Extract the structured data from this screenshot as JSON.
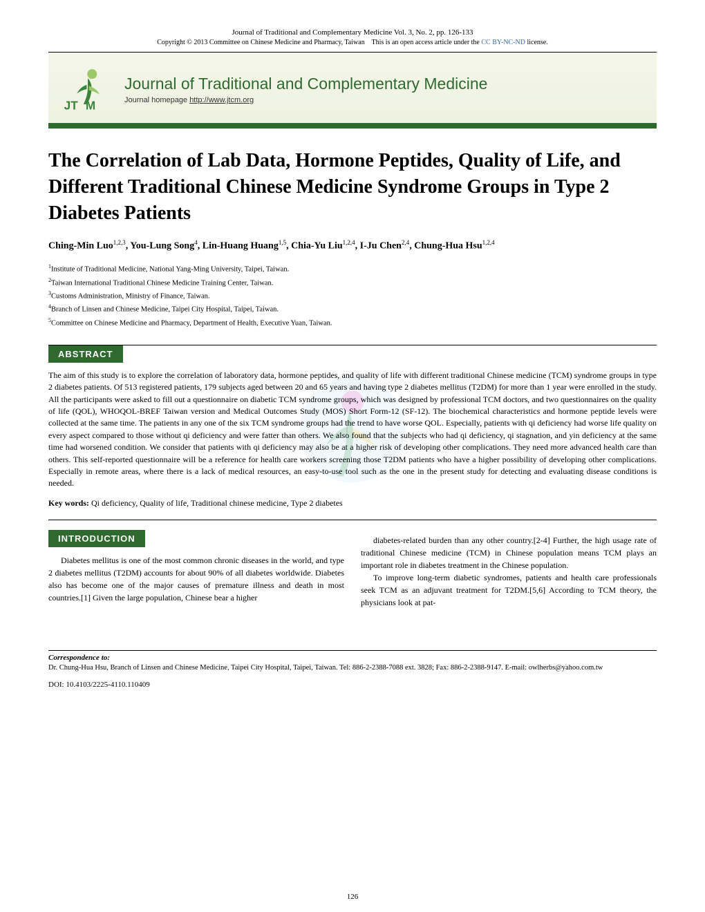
{
  "header": {
    "line1": "Journal of Traditional and Complementary Medicine Vol. 3, No. 2, pp. 126-133",
    "line2_prefix": "Copyright © 2013 Committee on Chinese Medicine and Pharmacy, Taiwan",
    "line2_mid": "This is an open access article under the ",
    "license_text": "CC BY-NC-ND",
    "line2_suffix": " license."
  },
  "banner": {
    "title": "Journal of Traditional and Complementary Medicine",
    "subtitle_prefix": "Journal homepage ",
    "subtitle_link": "http://www.jtcm.org",
    "logo_letters": "JTCM",
    "logo_fill": "#3a833a",
    "logo_accent": "#9cc86a"
  },
  "article": {
    "title": "The Correlation of Lab Data, Hormone Peptides, Quality of Life, and Different Traditional Chinese Medicine Syndrome Groups in Type 2 Diabetes Patients",
    "authors_html": "Ching-Min Luo<sup>1,2,3</sup>, You-Lung Song<sup>4</sup>, Lin-Huang Huang<sup>1,5</sup>, Chia-Yu Liu<sup>1,2,4</sup>, I-Ju Chen<sup>2,4</sup>, Chung-Hua Hsu<sup>1,2,4</sup>",
    "affiliations": [
      "Institute of Traditional Medicine, National Yang-Ming University, Taipei, Taiwan.",
      "Taiwan International Traditional Chinese Medicine Training Center, Taiwan.",
      "Customs Administration, Ministry of Finance, Taiwan.",
      "Branch of Linsen and Chinese Medicine, Taipei City Hospital, Taipei, Taiwan.",
      "Committee on Chinese Medicine and Pharmacy, Department of Health, Executive Yuan, Taiwan."
    ]
  },
  "sections": {
    "abstract_label": "ABSTRACT",
    "introduction_label": "INTRODUCTION"
  },
  "abstract": {
    "text": "The aim of this study is to explore the correlation of laboratory data, hormone peptides, and quality of life with different traditional Chinese medicine (TCM) syndrome groups in type 2 diabetes patients. Of 513 registered patients, 179 subjects aged between 20 and 65 years and having type 2 diabetes mellitus (T2DM) for more than 1 year were enrolled in the study. All the participants were asked to fill out a questionnaire on diabetic TCM syndrome groups, which was designed by professional TCM doctors, and two questionnaires on the quality of life (QOL), WHOQOL-BREF Taiwan version and Medical Outcomes Study (MOS) Short Form-12 (SF-12). The biochemical characteristics and hormone peptide levels were collected at the same time. The patients in any one of the six TCM syndrome groups had the trend to have worse QOL. Especially, patients with qi deficiency had worse life quality on every aspect compared to those without qi deficiency and were fatter than others. We also found that the subjects who had qi deficiency, qi stagnation, and yin deficiency at the same time had worsened condition. We consider that patients with qi deficiency may also be at a higher risk of developing other complications. They need more advanced health care than others. This self-reported questionnaire will be a reference for health care workers screening those T2DM patients who have a higher possibility of developing other complications. Especially in remote areas, where there is a lack of medical resources, an easy-to-use tool such as the one in the present study for detecting and evaluating disease conditions is needed."
  },
  "keywords": {
    "label": "Key words:",
    "text": " Qi deficiency, Quality of life, Traditional chinese medicine, Type 2 diabetes"
  },
  "introduction": {
    "col1_p1": "Diabetes mellitus is one of the most common chronic diseases in the world, and type 2 diabetes mellitus (T2DM) accounts for about 90% of all diabetes worldwide. Diabetes also has become one of the major causes of premature illness and death in most countries.[1] Given the large population, Chinese bear a higher",
    "col2_p1": "diabetes-related burden than any other country.[2-4] Further, the high usage rate of traditional Chinese medicine (TCM) in Chinese population means TCM plays an important role in diabetes treatment in the Chinese population.",
    "col2_p2": "To improve long-term diabetic syndromes, patients and health care professionals seek TCM as an adjuvant treatment for T2DM.[5,6] According to TCM theory, the physicians look at pat-"
  },
  "footer": {
    "correspondence_label": "Correspondence to:",
    "correspondence_body": "Dr. Chung-Hua Hsu, Branch of Linsen and Chinese Medicine, Taipei City Hospital, Taipei, Taiwan. Tel: 886-2-2388-7088 ext. 3828; Fax: 886-2-2388-9147. E-mail: owlherbs@yahoo.com.tw",
    "doi": "DOI: 10.4103/2225-4110.110409",
    "page_number": "126"
  },
  "colors": {
    "green": "#2e6a2e",
    "banner_bg_top": "#f4f6ea",
    "banner_bg_bottom": "#eef2e0",
    "link_blue": "#3b6fa8"
  }
}
